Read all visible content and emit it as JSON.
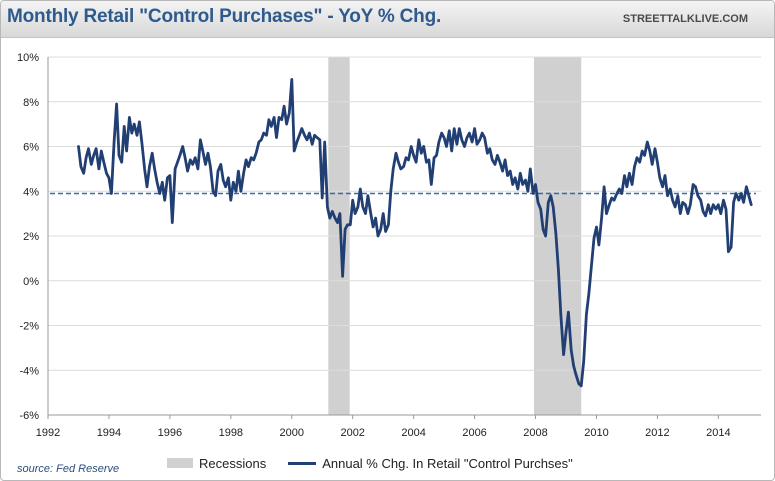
{
  "header": {
    "title": "Monthly Retail \"Control Purchases\" - YoY % Chg.",
    "watermark": "STREETTALKLIVE.COM"
  },
  "source_note": "source: Fed Reserve",
  "legend": {
    "recessions_label": "Recessions",
    "series_label": "Annual % Chg. In Retail \"Control Purchses\""
  },
  "colors": {
    "series": "#223f73",
    "recession": "#d0d0d0",
    "reference_line": "#3a68a8",
    "title": "#2e5a8c"
  },
  "chart_data": {
    "type": "line",
    "title": "Monthly Retail \"Control Purchases\" - YoY % Chg.",
    "xlabel": "",
    "ylabel": "",
    "xlim": [
      1992,
      2015.4
    ],
    "ylim": [
      -6,
      10
    ],
    "x_ticks": [
      "1992",
      "1994",
      "1996",
      "1998",
      "2000",
      "2002",
      "2004",
      "2006",
      "2008",
      "2010",
      "2012",
      "2014"
    ],
    "y_ticks": [
      "10%",
      "8%",
      "6%",
      "4%",
      "2%",
      "0%",
      "-2%",
      "-4%",
      "-6%"
    ],
    "y_tick_values": [
      10,
      8,
      6,
      4,
      2,
      0,
      -2,
      -4,
      -6
    ],
    "grid": "horizontal",
    "legend_position": "bottom",
    "recessions": [
      [
        2001.2,
        2001.9
      ],
      [
        2007.95,
        2009.5
      ]
    ],
    "reference_line": {
      "y": 3.9,
      "style": "dashed"
    },
    "series": [
      {
        "name": "Annual % Chg. In Retail \"Control Purchses\"",
        "points": [
          [
            1993.0,
            6.0
          ],
          [
            1993.08,
            5.1
          ],
          [
            1993.17,
            4.8
          ],
          [
            1993.25,
            5.5
          ],
          [
            1993.33,
            5.9
          ],
          [
            1993.42,
            5.2
          ],
          [
            1993.5,
            5.6
          ],
          [
            1993.58,
            5.9
          ],
          [
            1993.67,
            5.0
          ],
          [
            1993.75,
            5.8
          ],
          [
            1993.83,
            5.3
          ],
          [
            1993.92,
            4.8
          ],
          [
            1994.0,
            4.6
          ],
          [
            1994.08,
            3.9
          ],
          [
            1994.17,
            6.2
          ],
          [
            1994.25,
            7.9
          ],
          [
            1994.33,
            5.6
          ],
          [
            1994.42,
            5.3
          ],
          [
            1994.5,
            6.9
          ],
          [
            1994.58,
            5.8
          ],
          [
            1994.67,
            7.3
          ],
          [
            1994.75,
            6.6
          ],
          [
            1994.83,
            7.0
          ],
          [
            1994.92,
            6.5
          ],
          [
            1995.0,
            7.1
          ],
          [
            1995.08,
            6.2
          ],
          [
            1995.17,
            5.0
          ],
          [
            1995.25,
            4.2
          ],
          [
            1995.33,
            5.1
          ],
          [
            1995.42,
            5.7
          ],
          [
            1995.5,
            5.0
          ],
          [
            1995.58,
            4.4
          ],
          [
            1995.67,
            3.9
          ],
          [
            1995.75,
            4.4
          ],
          [
            1995.83,
            3.6
          ],
          [
            1995.92,
            4.6
          ],
          [
            1996.0,
            4.7
          ],
          [
            1996.08,
            2.6
          ],
          [
            1996.17,
            5.0
          ],
          [
            1996.25,
            5.3
          ],
          [
            1996.33,
            5.6
          ],
          [
            1996.42,
            6.0
          ],
          [
            1996.5,
            5.5
          ],
          [
            1996.58,
            4.9
          ],
          [
            1996.67,
            5.4
          ],
          [
            1996.75,
            5.2
          ],
          [
            1996.83,
            5.5
          ],
          [
            1996.92,
            5.0
          ],
          [
            1997.0,
            6.3
          ],
          [
            1997.08,
            5.8
          ],
          [
            1997.17,
            5.2
          ],
          [
            1997.25,
            5.7
          ],
          [
            1997.33,
            5.1
          ],
          [
            1997.42,
            4.0
          ],
          [
            1997.5,
            3.8
          ],
          [
            1997.58,
            4.9
          ],
          [
            1997.67,
            5.2
          ],
          [
            1997.75,
            4.5
          ],
          [
            1997.83,
            4.2
          ],
          [
            1997.92,
            4.6
          ],
          [
            1998.0,
            3.6
          ],
          [
            1998.08,
            4.4
          ],
          [
            1998.17,
            4.0
          ],
          [
            1998.25,
            4.9
          ],
          [
            1998.33,
            4.0
          ],
          [
            1998.42,
            4.8
          ],
          [
            1998.5,
            5.4
          ],
          [
            1998.58,
            5.1
          ],
          [
            1998.67,
            5.5
          ],
          [
            1998.75,
            5.4
          ],
          [
            1998.83,
            5.7
          ],
          [
            1998.92,
            6.2
          ],
          [
            1999.0,
            6.3
          ],
          [
            1999.08,
            6.6
          ],
          [
            1999.17,
            6.5
          ],
          [
            1999.25,
            7.2
          ],
          [
            1999.33,
            6.9
          ],
          [
            1999.42,
            7.3
          ],
          [
            1999.5,
            6.4
          ],
          [
            1999.58,
            7.3
          ],
          [
            1999.67,
            7.2
          ],
          [
            1999.75,
            7.8
          ],
          [
            1999.83,
            7.0
          ],
          [
            1999.92,
            7.5
          ],
          [
            2000.0,
            9.0
          ],
          [
            2000.08,
            5.8
          ],
          [
            2000.17,
            6.2
          ],
          [
            2000.25,
            6.5
          ],
          [
            2000.33,
            6.8
          ],
          [
            2000.42,
            6.5
          ],
          [
            2000.5,
            6.3
          ],
          [
            2000.58,
            6.6
          ],
          [
            2000.67,
            6.1
          ],
          [
            2000.75,
            6.5
          ],
          [
            2000.83,
            6.4
          ],
          [
            2000.92,
            6.3
          ],
          [
            2001.0,
            3.7
          ],
          [
            2001.08,
            6.2
          ],
          [
            2001.17,
            3.3
          ],
          [
            2001.25,
            2.8
          ],
          [
            2001.33,
            3.1
          ],
          [
            2001.42,
            2.8
          ],
          [
            2001.5,
            2.6
          ],
          [
            2001.58,
            3.0
          ],
          [
            2001.67,
            0.2
          ],
          [
            2001.75,
            2.3
          ],
          [
            2001.83,
            2.5
          ],
          [
            2001.92,
            2.5
          ],
          [
            2002.0,
            3.6
          ],
          [
            2002.08,
            3.0
          ],
          [
            2002.17,
            3.3
          ],
          [
            2002.25,
            4.1
          ],
          [
            2002.33,
            3.3
          ],
          [
            2002.42,
            3.0
          ],
          [
            2002.5,
            3.8
          ],
          [
            2002.58,
            3.1
          ],
          [
            2002.67,
            2.4
          ],
          [
            2002.75,
            2.8
          ],
          [
            2002.83,
            2.0
          ],
          [
            2002.92,
            2.3
          ],
          [
            2003.0,
            3.0
          ],
          [
            2003.08,
            2.2
          ],
          [
            2003.17,
            2.5
          ],
          [
            2003.25,
            4.0
          ],
          [
            2003.33,
            5.0
          ],
          [
            2003.42,
            5.7
          ],
          [
            2003.5,
            5.3
          ],
          [
            2003.58,
            5.0
          ],
          [
            2003.67,
            5.1
          ],
          [
            2003.75,
            5.5
          ],
          [
            2003.83,
            5.4
          ],
          [
            2003.92,
            6.0
          ],
          [
            2004.0,
            5.6
          ],
          [
            2004.08,
            5.3
          ],
          [
            2004.17,
            6.3
          ],
          [
            2004.25,
            5.7
          ],
          [
            2004.33,
            6.0
          ],
          [
            2004.42,
            5.3
          ],
          [
            2004.5,
            5.4
          ],
          [
            2004.58,
            4.3
          ],
          [
            2004.67,
            5.5
          ],
          [
            2004.75,
            5.6
          ],
          [
            2004.83,
            6.2
          ],
          [
            2004.92,
            6.6
          ],
          [
            2005.0,
            6.4
          ],
          [
            2005.08,
            6.0
          ],
          [
            2005.17,
            6.7
          ],
          [
            2005.25,
            5.8
          ],
          [
            2005.33,
            6.8
          ],
          [
            2005.42,
            6.1
          ],
          [
            2005.5,
            6.8
          ],
          [
            2005.58,
            6.3
          ],
          [
            2005.67,
            6.0
          ],
          [
            2005.75,
            6.4
          ],
          [
            2005.83,
            6.6
          ],
          [
            2005.92,
            6.2
          ],
          [
            2006.0,
            6.8
          ],
          [
            2006.08,
            6.1
          ],
          [
            2006.17,
            6.3
          ],
          [
            2006.25,
            6.6
          ],
          [
            2006.33,
            6.4
          ],
          [
            2006.42,
            5.7
          ],
          [
            2006.5,
            5.9
          ],
          [
            2006.58,
            5.4
          ],
          [
            2006.67,
            5.2
          ],
          [
            2006.75,
            5.6
          ],
          [
            2006.83,
            5.3
          ],
          [
            2006.92,
            4.9
          ],
          [
            2007.0,
            5.4
          ],
          [
            2007.08,
            4.7
          ],
          [
            2007.17,
            4.9
          ],
          [
            2007.25,
            4.3
          ],
          [
            2007.33,
            4.6
          ],
          [
            2007.42,
            4.1
          ],
          [
            2007.5,
            4.8
          ],
          [
            2007.58,
            4.3
          ],
          [
            2007.67,
            4.5
          ],
          [
            2007.75,
            4.0
          ],
          [
            2007.83,
            5.0
          ],
          [
            2007.92,
            3.9
          ],
          [
            2008.0,
            4.3
          ],
          [
            2008.08,
            3.5
          ],
          [
            2008.17,
            3.2
          ],
          [
            2008.25,
            2.3
          ],
          [
            2008.33,
            2.0
          ],
          [
            2008.42,
            3.5
          ],
          [
            2008.5,
            3.8
          ],
          [
            2008.58,
            3.3
          ],
          [
            2008.67,
            2.1
          ],
          [
            2008.75,
            0.5
          ],
          [
            2008.83,
            -1.5
          ],
          [
            2008.92,
            -3.3
          ],
          [
            2009.0,
            -2.3
          ],
          [
            2009.08,
            -1.4
          ],
          [
            2009.17,
            -3.1
          ],
          [
            2009.25,
            -3.8
          ],
          [
            2009.33,
            -4.2
          ],
          [
            2009.42,
            -4.6
          ],
          [
            2009.5,
            -4.7
          ],
          [
            2009.58,
            -3.6
          ],
          [
            2009.67,
            -1.5
          ],
          [
            2009.75,
            -0.6
          ],
          [
            2009.83,
            0.6
          ],
          [
            2009.92,
            1.9
          ],
          [
            2010.0,
            2.4
          ],
          [
            2010.08,
            1.6
          ],
          [
            2010.17,
            2.8
          ],
          [
            2010.25,
            4.2
          ],
          [
            2010.33,
            3.0
          ],
          [
            2010.42,
            3.4
          ],
          [
            2010.5,
            3.7
          ],
          [
            2010.58,
            3.6
          ],
          [
            2010.67,
            3.9
          ],
          [
            2010.75,
            4.1
          ],
          [
            2010.83,
            3.9
          ],
          [
            2010.92,
            4.7
          ],
          [
            2011.0,
            4.2
          ],
          [
            2011.08,
            4.8
          ],
          [
            2011.17,
            4.3
          ],
          [
            2011.25,
            5.1
          ],
          [
            2011.33,
            5.5
          ],
          [
            2011.42,
            5.3
          ],
          [
            2011.5,
            5.8
          ],
          [
            2011.58,
            5.6
          ],
          [
            2011.67,
            6.2
          ],
          [
            2011.75,
            5.8
          ],
          [
            2011.83,
            5.2
          ],
          [
            2011.92,
            5.9
          ],
          [
            2012.0,
            5.3
          ],
          [
            2012.08,
            4.6
          ],
          [
            2012.17,
            4.2
          ],
          [
            2012.25,
            4.7
          ],
          [
            2012.33,
            3.8
          ],
          [
            2012.42,
            4.1
          ],
          [
            2012.5,
            3.6
          ],
          [
            2012.58,
            3.3
          ],
          [
            2012.67,
            3.8
          ],
          [
            2012.75,
            3.0
          ],
          [
            2012.83,
            3.5
          ],
          [
            2012.92,
            3.4
          ],
          [
            2013.0,
            3.0
          ],
          [
            2013.08,
            3.4
          ],
          [
            2013.17,
            4.3
          ],
          [
            2013.25,
            4.2
          ],
          [
            2013.33,
            3.8
          ],
          [
            2013.42,
            3.6
          ],
          [
            2013.5,
            3.1
          ],
          [
            2013.58,
            2.9
          ],
          [
            2013.67,
            3.4
          ],
          [
            2013.75,
            3.0
          ],
          [
            2013.83,
            3.4
          ],
          [
            2013.92,
            3.2
          ],
          [
            2014.0,
            3.4
          ],
          [
            2014.08,
            3.0
          ],
          [
            2014.17,
            3.6
          ],
          [
            2014.25,
            3.2
          ],
          [
            2014.33,
            1.3
          ],
          [
            2014.42,
            1.5
          ],
          [
            2014.5,
            3.5
          ],
          [
            2014.58,
            3.9
          ],
          [
            2014.67,
            3.6
          ],
          [
            2014.75,
            3.9
          ],
          [
            2014.83,
            3.5
          ],
          [
            2014.92,
            4.2
          ],
          [
            2015.0,
            3.8
          ],
          [
            2015.08,
            3.4
          ]
        ]
      }
    ]
  }
}
